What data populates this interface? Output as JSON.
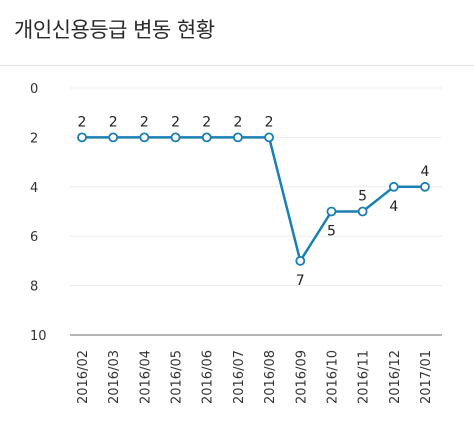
{
  "header": {
    "title": "개인신용등급 변동 현황"
  },
  "colors": {
    "line": "#1a7fb4",
    "grid": "#ebebeb",
    "axis": "#b3b3b3",
    "point_fill": "#ffffff"
  },
  "chart_data": {
    "type": "line",
    "title": "개인신용등급 변동 현황",
    "x": [
      "2016/02",
      "2016/03",
      "2016/04",
      "2016/05",
      "2016/06",
      "2016/07",
      "2016/08",
      "2016/09",
      "2016/10",
      "2016/11",
      "2016/12",
      "2017/01"
    ],
    "y": [
      2,
      2,
      2,
      2,
      2,
      2,
      2,
      7,
      5,
      5,
      4,
      4
    ],
    "ylim": [
      0,
      10
    ],
    "y_inverted": true,
    "yticks": [
      0,
      2,
      4,
      6,
      8,
      10
    ],
    "grid": true,
    "data_labels": true,
    "legend": "none"
  }
}
